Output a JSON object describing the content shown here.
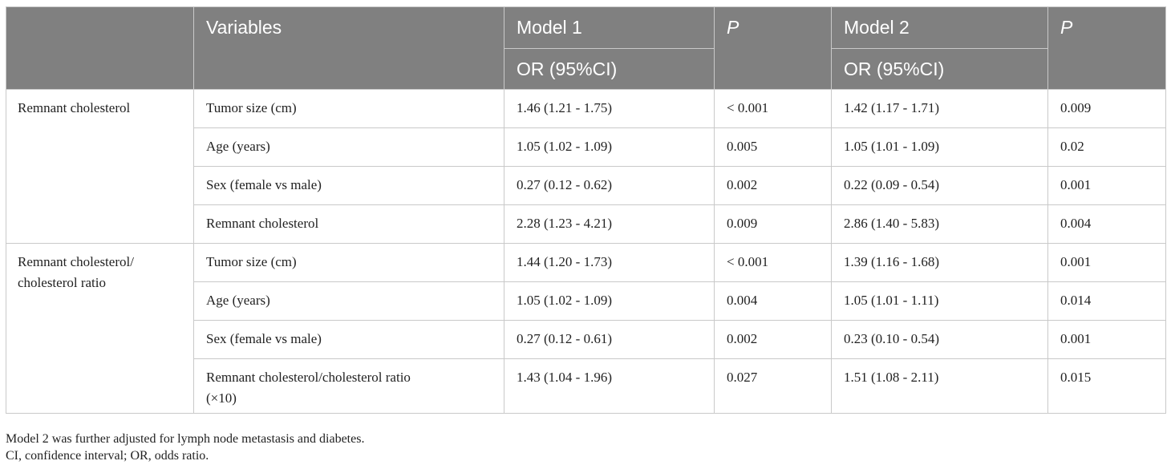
{
  "header": {
    "col1": "",
    "variables": "Variables",
    "model1": "Model 1",
    "p1": "P",
    "model2": "Model 2",
    "p2": "P",
    "or_ci_1": "OR (95%CI)",
    "or_ci_2": "OR (95%CI)"
  },
  "groups": [
    {
      "label": "Remnant cholesterol",
      "rows": [
        {
          "variable": "Tumor size (cm)",
          "m1": "1.46 (1.21 - 1.75)",
          "p1": "< 0.001",
          "m2": "1.42 (1.17 - 1.71)",
          "p2": "0.009"
        },
        {
          "variable": "Age (years)",
          "m1": "1.05 (1.02 - 1.09)",
          "p1": "0.005",
          "m2": "1.05 (1.01 - 1.09)",
          "p2": "0.02"
        },
        {
          "variable": "Sex (female vs male)",
          "m1": "0.27 (0.12 - 0.62)",
          "p1": "0.002",
          "m2": "0.22 (0.09 - 0.54)",
          "p2": "0.001"
        },
        {
          "variable": "Remnant cholesterol",
          "m1": "2.28 (1.23 - 4.21)",
          "p1": "0.009",
          "m2": "2.86 (1.40 - 5.83)",
          "p2": "0.004"
        }
      ]
    },
    {
      "label": "Remnant cholesterol/ cholesterol ratio",
      "rows": [
        {
          "variable": "Tumor size (cm)",
          "m1": "1.44 (1.20 - 1.73)",
          "p1": "< 0.001",
          "m2": "1.39 (1.16 - 1.68)",
          "p2": "0.001"
        },
        {
          "variable": "Age (years)",
          "m1": "1.05 (1.02 - 1.09)",
          "p1": "0.004",
          "m2": "1.05 (1.01 - 1.11)",
          "p2": "0.014"
        },
        {
          "variable": "Sex (female vs male)",
          "m1": "0.27 (0.12 - 0.61)",
          "p1": "0.002",
          "m2": "0.23 (0.10 - 0.54)",
          "p2": "0.001"
        },
        {
          "variable": "Remnant cholesterol/cholesterol ratio (×10)",
          "m1": "1.43 (1.04 - 1.96)",
          "p1": "0.027",
          "m2": "1.51 (1.08 - 2.11)",
          "p2": "0.015"
        }
      ]
    }
  ],
  "footnotes": [
    "Model 2 was further adjusted for lymph node metastasis and diabetes.",
    "CI, confidence interval; OR, odds ratio."
  ]
}
